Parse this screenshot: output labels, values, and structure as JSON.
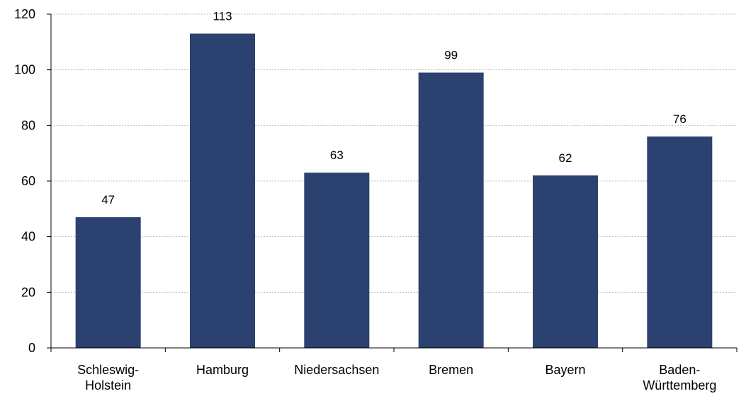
{
  "chart_data": {
    "type": "bar",
    "categories": [
      [
        "Schleswig-",
        "Holstein"
      ],
      [
        "Hamburg"
      ],
      [
        "Niedersachsen"
      ],
      [
        "Bremen"
      ],
      [
        "Bayern"
      ],
      [
        "Baden-",
        "Württemberg"
      ]
    ],
    "values": [
      47,
      113,
      63,
      99,
      62,
      76
    ],
    "data_labels": [
      "47",
      "113",
      "63",
      "99",
      "62",
      "76"
    ],
    "ylim": [
      0,
      120
    ],
    "yticks": [
      0,
      20,
      40,
      60,
      80,
      100,
      120
    ],
    "title": "",
    "xlabel": "",
    "ylabel": "",
    "grid": "horizontal-dotted",
    "bar_color": "#2b416f",
    "grid_color": "#bdbdbd",
    "axis_color": "#000000"
  }
}
